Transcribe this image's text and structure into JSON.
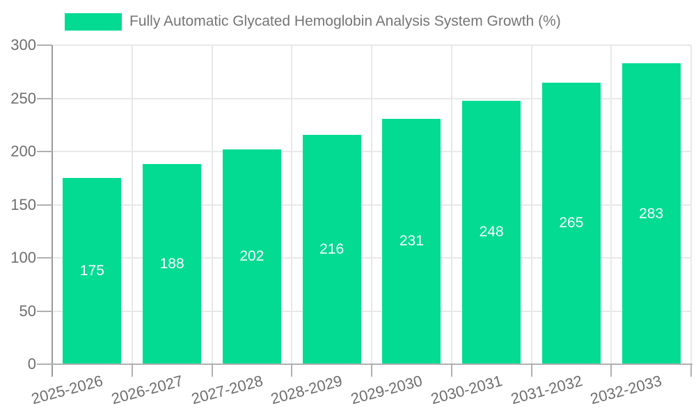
{
  "chart_data": {
    "type": "bar",
    "legend_label": "Fully Automatic Glycated Hemoglobin Analysis System Growth (%)",
    "categories": [
      "2025-2026",
      "2026-2027",
      "2027-2028",
      "2028-2029",
      "2029-2030",
      "2030-2031",
      "2031-2032",
      "2032-2033"
    ],
    "values": [
      175,
      188,
      202,
      216,
      231,
      248,
      265,
      283
    ],
    "title": "",
    "xlabel": "",
    "ylabel": "",
    "ylim": [
      0,
      300
    ],
    "ytick_step": 50,
    "yticks": [
      0,
      50,
      100,
      150,
      200,
      250,
      300
    ],
    "grid": true,
    "legend_position": "top-left",
    "bar_labels_inside": true,
    "colors": {
      "bar": "#03DB92",
      "bar_label": "#ffffff",
      "legend_text": "#757575",
      "axis_label": "#6e6e6e",
      "gridline": "#e8e8e8",
      "x_axis_line": "#b0b0b0",
      "y_axis_line": "#999999",
      "background": "#ffffff"
    }
  }
}
